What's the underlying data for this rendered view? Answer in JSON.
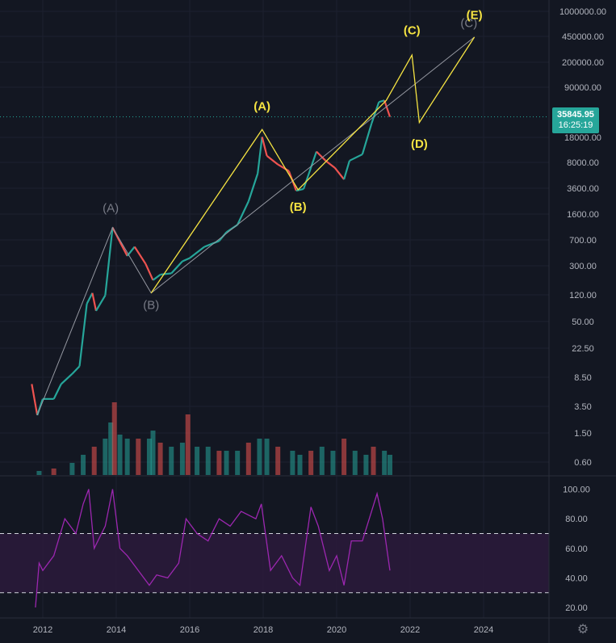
{
  "chart_data": {
    "type": "candlestick",
    "x_axis": {
      "ticks": [
        "2012",
        "2014",
        "2016",
        "2018",
        "2020",
        "2022",
        "2024"
      ]
    },
    "y_axis": {
      "scale": "log",
      "ticks": [
        "1000000.00",
        "450000.00",
        "200000.00",
        "90000.00",
        "18000.00",
        "8000.00",
        "3600.00",
        "1600.00",
        "700.00",
        "300.00",
        "120.00",
        "50.00",
        "22.50",
        "8.50",
        "3.50",
        "1.50",
        "0.60"
      ]
    },
    "current_price": {
      "value": "35845.95",
      "countdown": "16:25:19",
      "color": "#26a69a"
    },
    "price_series": [
      [
        2011.7,
        8
      ],
      [
        2011.85,
        3
      ],
      [
        2012.0,
        5
      ],
      [
        2012.3,
        5
      ],
      [
        2012.5,
        8
      ],
      [
        2012.8,
        11
      ],
      [
        2013.0,
        14
      ],
      [
        2013.2,
        100
      ],
      [
        2013.35,
        140
      ],
      [
        2013.45,
        80
      ],
      [
        2013.7,
        130
      ],
      [
        2013.9,
        1100
      ],
      [
        2014.1,
        700
      ],
      [
        2014.3,
        450
      ],
      [
        2014.5,
        600
      ],
      [
        2014.8,
        350
      ],
      [
        2015.0,
        210
      ],
      [
        2015.2,
        250
      ],
      [
        2015.5,
        260
      ],
      [
        2015.8,
        380
      ],
      [
        2016.0,
        420
      ],
      [
        2016.4,
        600
      ],
      [
        2016.8,
        720
      ],
      [
        2017.0,
        950
      ],
      [
        2017.3,
        1200
      ],
      [
        2017.6,
        2500
      ],
      [
        2017.85,
        6000
      ],
      [
        2017.97,
        19000
      ],
      [
        2018.1,
        10500
      ],
      [
        2018.4,
        8000
      ],
      [
        2018.7,
        6500
      ],
      [
        2018.9,
        3500
      ],
      [
        2019.1,
        3700
      ],
      [
        2019.45,
        12000
      ],
      [
        2019.7,
        9000
      ],
      [
        2019.95,
        7200
      ],
      [
        2020.2,
        5000
      ],
      [
        2020.35,
        9000
      ],
      [
        2020.7,
        11000
      ],
      [
        2020.95,
        29000
      ],
      [
        2021.15,
        57000
      ],
      [
        2021.3,
        60000
      ],
      [
        2021.45,
        35845.95
      ]
    ],
    "volume": {
      "bars": [
        [
          2011.9,
          0.05
        ],
        [
          2012.3,
          0.08
        ],
        [
          2012.8,
          0.15
        ],
        [
          2013.1,
          0.25
        ],
        [
          2013.4,
          0.35
        ],
        [
          2013.7,
          0.45
        ],
        [
          2013.85,
          0.65
        ],
        [
          2013.95,
          0.9
        ],
        [
          2014.1,
          0.5
        ],
        [
          2014.3,
          0.45
        ],
        [
          2014.6,
          0.45
        ],
        [
          2014.9,
          0.45
        ],
        [
          2015.0,
          0.55
        ],
        [
          2015.2,
          0.4
        ],
        [
          2015.5,
          0.35
        ],
        [
          2015.8,
          0.4
        ],
        [
          2015.95,
          0.75
        ],
        [
          2016.2,
          0.35
        ],
        [
          2016.5,
          0.35
        ],
        [
          2016.8,
          0.3
        ],
        [
          2017.0,
          0.3
        ],
        [
          2017.3,
          0.3
        ],
        [
          2017.6,
          0.4
        ],
        [
          2017.9,
          0.45
        ],
        [
          2018.1,
          0.45
        ],
        [
          2018.4,
          0.35
        ],
        [
          2018.8,
          0.3
        ],
        [
          2019.0,
          0.25
        ],
        [
          2019.3,
          0.3
        ],
        [
          2019.6,
          0.35
        ],
        [
          2019.9,
          0.3
        ],
        [
          2020.2,
          0.45
        ],
        [
          2020.5,
          0.3
        ],
        [
          2020.8,
          0.25
        ],
        [
          2021.0,
          0.35
        ],
        [
          2021.3,
          0.3
        ],
        [
          2021.45,
          0.25
        ]
      ]
    },
    "rsi": {
      "y_ticks": [
        "100.00",
        "80.00",
        "60.00",
        "40.00",
        "20.00"
      ],
      "band": [
        30,
        70
      ],
      "series": [
        [
          2011.8,
          20
        ],
        [
          2011.9,
          50
        ],
        [
          2012.0,
          45
        ],
        [
          2012.3,
          55
        ],
        [
          2012.6,
          80
        ],
        [
          2012.9,
          70
        ],
        [
          2013.1,
          90
        ],
        [
          2013.25,
          100
        ],
        [
          2013.4,
          60
        ],
        [
          2013.7,
          75
        ],
        [
          2013.9,
          100
        ],
        [
          2014.1,
          60
        ],
        [
          2014.3,
          55
        ],
        [
          2014.6,
          45
        ],
        [
          2014.9,
          35
        ],
        [
          2015.1,
          42
        ],
        [
          2015.4,
          40
        ],
        [
          2015.7,
          50
        ],
        [
          2015.9,
          80
        ],
        [
          2016.2,
          70
        ],
        [
          2016.5,
          65
        ],
        [
          2016.8,
          80
        ],
        [
          2017.1,
          75
        ],
        [
          2017.4,
          85
        ],
        [
          2017.8,
          80
        ],
        [
          2017.95,
          90
        ],
        [
          2018.2,
          45
        ],
        [
          2018.5,
          55
        ],
        [
          2018.8,
          40
        ],
        [
          2019.0,
          35
        ],
        [
          2019.3,
          88
        ],
        [
          2019.5,
          75
        ],
        [
          2019.8,
          45
        ],
        [
          2020.0,
          55
        ],
        [
          2020.2,
          35
        ],
        [
          2020.4,
          65
        ],
        [
          2020.7,
          65
        ],
        [
          2020.95,
          85
        ],
        [
          2021.1,
          97
        ],
        [
          2021.25,
          80
        ],
        [
          2021.45,
          45
        ]
      ]
    },
    "wave_labels": {
      "gray": [
        "(A)",
        "(B)",
        "(C)"
      ],
      "yellow": [
        "(A)",
        "(B)",
        "(C)",
        "(D)",
        "(E)"
      ]
    },
    "colors": {
      "background": "#131722",
      "up": "#26a69a",
      "down": "#ef5350",
      "wave": "#f5e342",
      "trend": "#9598a1",
      "rsi_line": "#9c27b0",
      "rsi_band": "#2a1a3a",
      "axis_text": "#b2b5be"
    }
  },
  "ui": {
    "settings_icon": "gear-icon"
  }
}
